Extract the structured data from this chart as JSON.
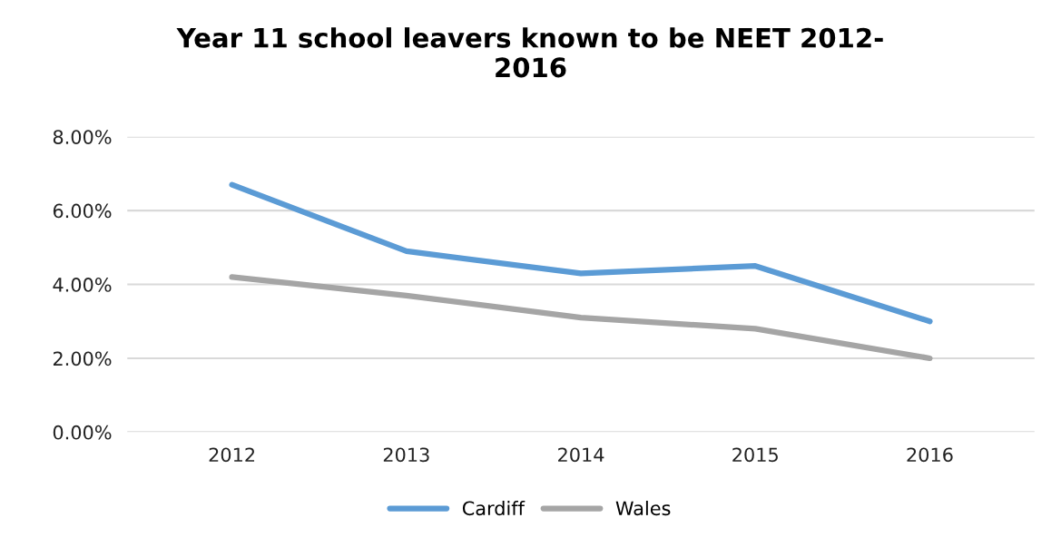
{
  "chart_data": {
    "type": "line",
    "title": "Year 11 school leavers known to be NEET 2012-\n2016",
    "categories": [
      "2012",
      "2013",
      "2014",
      "2015",
      "2016"
    ],
    "series": [
      {
        "name": "Cardiff",
        "color": "#5b9bd5",
        "values": [
          6.7,
          4.9,
          4.3,
          4.5,
          3.0
        ]
      },
      {
        "name": "Wales",
        "color": "#a5a5a5",
        "values": [
          4.2,
          3.7,
          3.1,
          2.8,
          2.0
        ]
      }
    ],
    "ylim": [
      0,
      8
    ],
    "yticks": [
      {
        "value": 0,
        "label": "0.00%"
      },
      {
        "value": 2,
        "label": "2.00%"
      },
      {
        "value": 4,
        "label": "4.00%"
      },
      {
        "value": 6,
        "label": "6.00%"
      },
      {
        "value": 8,
        "label": "8.00%"
      }
    ],
    "grid": "y",
    "legend": "bottom",
    "marker": "none",
    "line_style": "solid"
  }
}
